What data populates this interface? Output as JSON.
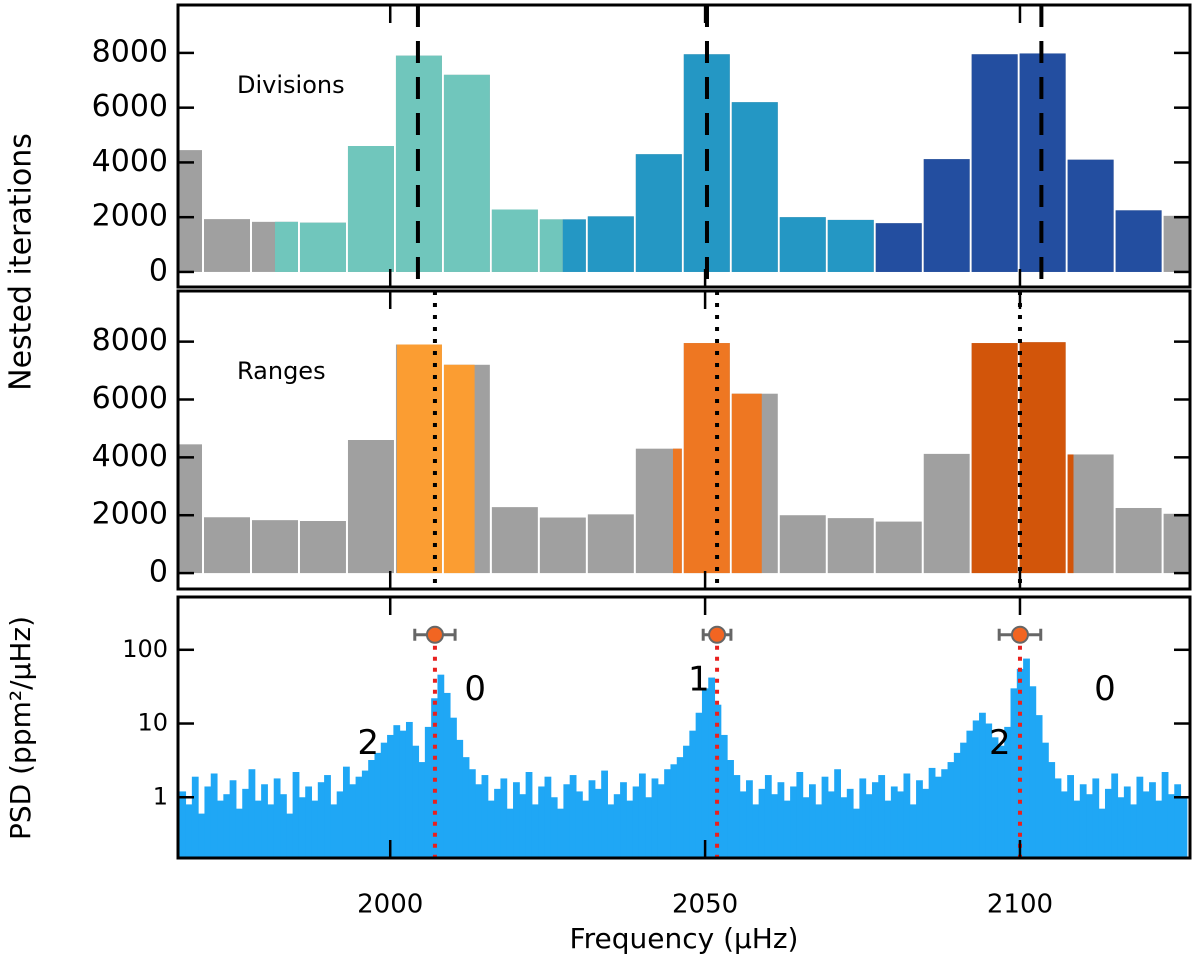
{
  "chart_data": [
    {
      "type": "histogram",
      "annotation": "Divisions",
      "bins": [
        1962.65,
        1970.27,
        1977.89,
        1985.51,
        1993.13,
        2000.75,
        2008.37,
        2015.98,
        2023.6,
        2031.22,
        2038.84,
        2046.46,
        2054.08,
        2061.7,
        2069.32,
        2076.94,
        2084.56,
        2092.17,
        2099.79,
        2107.41,
        2115.03,
        2122.65,
        2130.27
      ],
      "counts": [
        4450,
        1930,
        1830,
        1800,
        4600,
        7900,
        7200,
        2280,
        1920,
        2030,
        4300,
        7950,
        6200,
        2000,
        1900,
        1780,
        4120,
        7950,
        7980,
        4100,
        2250,
        2050
      ],
      "color": "#a0a0a0",
      "regions": [
        {
          "range": [
            1981.7,
            2027.4
          ],
          "color": "#70c6bc"
        },
        {
          "range": [
            2027.4,
            2077.0
          ],
          "color": "#2497c4"
        },
        {
          "range": [
            2077.0,
            2122.6
          ],
          "color": "#234ea0"
        }
      ],
      "vlines": [
        2004.4,
        2050.3,
        2103.4
      ],
      "vline_style": "dashed",
      "xlim": [
        1966.3,
        2127
      ],
      "xticks": [
        2000,
        2050,
        2100
      ],
      "ylim": [
        -550,
        9750
      ],
      "yticks": [
        0,
        2000,
        4000,
        6000,
        8000
      ]
    },
    {
      "type": "histogram",
      "annotation": "Ranges",
      "bins": [
        1962.65,
        1970.27,
        1977.89,
        1985.51,
        1993.13,
        2000.75,
        2008.37,
        2015.98,
        2023.6,
        2031.22,
        2038.84,
        2046.46,
        2054.08,
        2061.7,
        2069.32,
        2076.94,
        2084.56,
        2092.17,
        2099.79,
        2107.41,
        2115.03,
        2122.65,
        2130.27
      ],
      "counts": [
        4450,
        1930,
        1830,
        1800,
        4600,
        7900,
        7200,
        2280,
        1920,
        2030,
        4300,
        7950,
        6200,
        2000,
        1900,
        1780,
        4120,
        7950,
        7980,
        4100,
        2250,
        2050
      ],
      "color": "#a0a0a0",
      "regions": [
        {
          "range": [
            2001.06,
            2013.4
          ],
          "color": "#fb9d32"
        },
        {
          "range": [
            2044.9,
            2059.0
          ],
          "color": "#ee7722"
        },
        {
          "range": [
            2092.2,
            2108.5
          ],
          "color": "#d2550a"
        }
      ],
      "vlines": [
        2007.1,
        2051.9,
        2100.0
      ],
      "vline_style": "dotted",
      "xlim": [
        1966.3,
        2127
      ],
      "xticks": [
        2000,
        2050,
        2100
      ],
      "ylim": [
        -550,
        9750
      ],
      "yticks": [
        0,
        2000,
        4000,
        6000,
        8000
      ]
    },
    {
      "type": "spectrum",
      "color": "#1fa7f5",
      "log_y": true,
      "x": [
        1967,
        1968,
        1969,
        1970,
        1971,
        1972,
        1973,
        1974,
        1975,
        1976,
        1977,
        1978,
        1979,
        1980,
        1981,
        1982,
        1983,
        1984,
        1985,
        1986,
        1987,
        1988,
        1989,
        1990,
        1991,
        1992,
        1993,
        1994,
        1995,
        1996,
        1997,
        1998,
        1999,
        2000,
        2001,
        2002,
        2003,
        2004,
        2005,
        2006,
        2007,
        2008,
        2009,
        2010,
        2011,
        2012,
        2013,
        2014,
        2015,
        2016,
        2017,
        2018,
        2019,
        2020,
        2021,
        2022,
        2023,
        2024,
        2025,
        2026,
        2027,
        2028,
        2029,
        2030,
        2031,
        2032,
        2033,
        2034,
        2035,
        2036,
        2037,
        2038,
        2039,
        2040,
        2041,
        2042,
        2043,
        2044,
        2045,
        2046,
        2047,
        2048,
        2049,
        2050,
        2051,
        2052,
        2053,
        2054,
        2055,
        2056,
        2057,
        2058,
        2059,
        2060,
        2061,
        2062,
        2063,
        2064,
        2065,
        2066,
        2067,
        2068,
        2069,
        2070,
        2071,
        2072,
        2073,
        2074,
        2075,
        2076,
        2077,
        2078,
        2079,
        2080,
        2081,
        2082,
        2083,
        2084,
        2085,
        2086,
        2087,
        2088,
        2089,
        2090,
        2091,
        2092,
        2093,
        2094,
        2095,
        2096,
        2097,
        2098,
        2099,
        2100,
        2101,
        2102,
        2103,
        2104,
        2105,
        2106,
        2107,
        2108,
        2109,
        2110,
        2111,
        2112,
        2113,
        2114,
        2115,
        2116,
        2117,
        2118,
        2119,
        2120,
        2121,
        2122,
        2123,
        2124,
        2125,
        2126
      ],
      "values": [
        1.2,
        0.8,
        1.9,
        0.6,
        1.4,
        2.1,
        0.9,
        1.1,
        1.7,
        0.7,
        1.3,
        2.4,
        0.9,
        1.5,
        0.8,
        1.8,
        1.1,
        0.6,
        2.2,
        1.0,
        1.4,
        0.9,
        1.6,
        2.0,
        0.8,
        1.2,
        2.6,
        1.5,
        1.9,
        2.3,
        3.2,
        4.0,
        5.5,
        7.0,
        9.5,
        8.0,
        10.5,
        5.0,
        3.0,
        9.0,
        22,
        46,
        26,
        12,
        6.0,
        3.5,
        2.4,
        1.5,
        2.0,
        0.9,
        1.3,
        1.8,
        0.7,
        1.6,
        1.1,
        2.2,
        0.8,
        1.4,
        1.9,
        1.0,
        0.7,
        1.5,
        2.0,
        1.2,
        0.9,
        1.7,
        1.3,
        2.3,
        0.8,
        1.1,
        1.6,
        0.9,
        1.4,
        2.1,
        1.0,
        1.8,
        1.5,
        2.4,
        2.8,
        3.5,
        5.0,
        8.0,
        14,
        30,
        42,
        18,
        7.0,
        3.2,
        2.0,
        1.2,
        1.7,
        0.8,
        1.3,
        2.0,
        1.1,
        1.6,
        0.9,
        1.4,
        2.2,
        1.0,
        1.5,
        0.8,
        1.9,
        1.2,
        2.4,
        1.0,
        1.3,
        0.7,
        1.8,
        1.1,
        1.6,
        2.0,
        0.9,
        1.4,
        1.2,
        2.1,
        0.8,
        1.7,
        1.3,
        2.5,
        1.9,
        2.4,
        3.0,
        4.0,
        5.5,
        8.0,
        11,
        14,
        10,
        6.5,
        5.0,
        9.0,
        30,
        55,
        76,
        32,
        13,
        5.5,
        3.0,
        1.8,
        1.2,
        2.0,
        0.9,
        1.5,
        1.1,
        1.8,
        0.7,
        1.3,
        2.1,
        1.0,
        1.4,
        0.8,
        1.9,
        1.2,
        1.6,
        0.9,
        2.2,
        1.1,
        1.5,
        1.0
      ],
      "markers": [
        {
          "x": 2007.1,
          "y": 160,
          "xerr": 3.2
        },
        {
          "x": 2051.9,
          "y": 160,
          "xerr": 2.2
        },
        {
          "x": 2100.0,
          "y": 160,
          "xerr": 3.3
        }
      ],
      "marker_color": "#f26522",
      "vline_color": "#e8201e",
      "annotations": [
        {
          "text": "2",
          "x": 1996.5,
          "y": 5.2
        },
        {
          "text": "0",
          "x": 2013.5,
          "y": 28
        },
        {
          "text": "1",
          "x": 2049.0,
          "y": 38
        },
        {
          "text": "2",
          "x": 2096.8,
          "y": 5.2
        },
        {
          "text": "0",
          "x": 2113.5,
          "y": 28
        }
      ],
      "xlim": [
        1966.3,
        2127
      ],
      "xticks": [
        2000,
        2050,
        2100
      ],
      "ylim": [
        0.15,
        520
      ],
      "yticks": [
        1,
        10,
        100
      ],
      "xlabel": "Frequency (μHz)",
      "ylabel": "PSD (ppm²/μHz)"
    },
    {
      "type": "label",
      "ylabel": "Nested iterations"
    }
  ]
}
